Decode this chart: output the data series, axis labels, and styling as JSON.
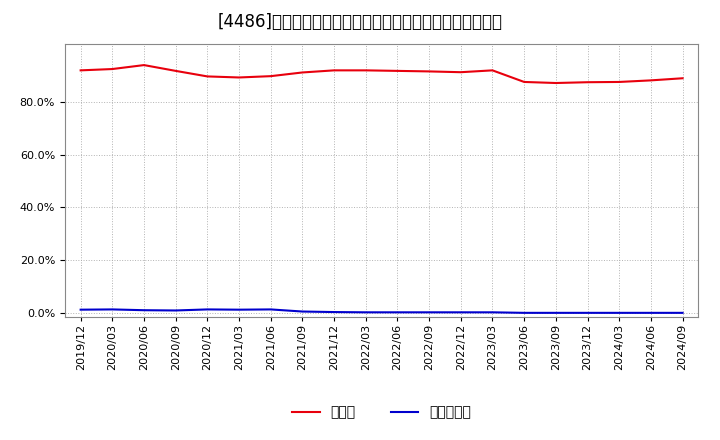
{
  "title": "[4486]　現顔金、有利子負債の総資産に対する比率の推移",
  "dates": [
    "2019/12",
    "2020/03",
    "2020/06",
    "2020/09",
    "2020/12",
    "2021/03",
    "2021/06",
    "2021/09",
    "2021/12",
    "2022/03",
    "2022/06",
    "2022/09",
    "2022/12",
    "2023/03",
    "2023/06",
    "2023/09",
    "2023/12",
    "2024/03",
    "2024/06",
    "2024/09"
  ],
  "cash_ratio": [
    0.92,
    0.925,
    0.94,
    0.918,
    0.897,
    0.893,
    0.898,
    0.912,
    0.92,
    0.92,
    0.918,
    0.916,
    0.913,
    0.92,
    0.876,
    0.872,
    0.875,
    0.876,
    0.882,
    0.89
  ],
  "debt_ratio": [
    0.012,
    0.013,
    0.01,
    0.009,
    0.013,
    0.012,
    0.013,
    0.005,
    0.003,
    0.002,
    0.002,
    0.002,
    0.002,
    0.002,
    0.0,
    0.0,
    0.0,
    0.0,
    0.0,
    0.0
  ],
  "cash_color": "#e8000d",
  "debt_color": "#0000cd",
  "background_color": "#ffffff",
  "grid_color": "#aaaaaa",
  "legend_cash": "現顔金",
  "legend_debt": "有利子負債",
  "yticks": [
    0.0,
    0.2,
    0.4,
    0.6,
    0.8
  ],
  "ylim": [
    -0.015,
    1.02
  ],
  "title_fontsize": 12,
  "tick_fontsize": 8,
  "legend_fontsize": 10
}
